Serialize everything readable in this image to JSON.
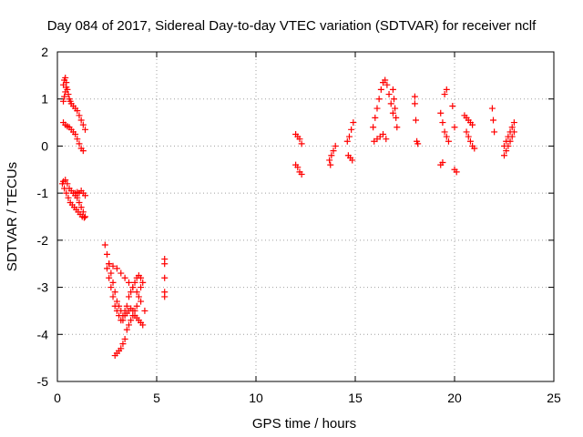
{
  "chart_data": {
    "type": "scatter",
    "title": "Day 084 of 2017, Sidereal Day-to-day VTEC variation (SDTVAR) for receiver nclf",
    "xlabel": "GPS time / hours",
    "ylabel": "SDTVAR / TECUs",
    "xlim": [
      0,
      25
    ],
    "ylim": [
      -5,
      2
    ],
    "x_ticks": [
      "0",
      "5",
      "10",
      "15",
      "20",
      "25"
    ],
    "y_ticks": [
      "2",
      "1",
      "0",
      "-1",
      "-2",
      "-3",
      "-4",
      "-5"
    ],
    "grid": true,
    "marker": "+",
    "color": "#ff0000",
    "points": [
      [
        0.3,
        1.3
      ],
      [
        0.35,
        1.4
      ],
      [
        0.4,
        1.45
      ],
      [
        0.45,
        1.35
      ],
      [
        0.5,
        1.2
      ],
      [
        0.55,
        1.1
      ],
      [
        0.6,
        1.0
      ],
      [
        0.65,
        0.95
      ],
      [
        0.7,
        0.9
      ],
      [
        0.8,
        0.85
      ],
      [
        0.9,
        0.8
      ],
      [
        1.0,
        0.75
      ],
      [
        1.1,
        0.65
      ],
      [
        1.2,
        0.55
      ],
      [
        1.3,
        0.45
      ],
      [
        1.4,
        0.35
      ],
      [
        0.3,
        0.95
      ],
      [
        0.35,
        1.05
      ],
      [
        0.4,
        1.15
      ],
      [
        0.45,
        1.25
      ],
      [
        0.3,
        0.5
      ],
      [
        0.4,
        0.45
      ],
      [
        0.5,
        0.42
      ],
      [
        0.6,
        0.4
      ],
      [
        0.7,
        0.35
      ],
      [
        0.8,
        0.3
      ],
      [
        0.9,
        0.25
      ],
      [
        1.0,
        0.15
      ],
      [
        1.1,
        0.05
      ],
      [
        1.2,
        -0.05
      ],
      [
        1.3,
        -0.1
      ],
      [
        0.25,
        -0.8
      ],
      [
        0.3,
        -0.75
      ],
      [
        0.4,
        -0.72
      ],
      [
        0.5,
        -0.8
      ],
      [
        0.6,
        -0.9
      ],
      [
        0.7,
        -0.95
      ],
      [
        0.8,
        -1.0
      ],
      [
        0.9,
        -1.05
      ],
      [
        1.0,
        -1.1
      ],
      [
        1.1,
        -1.2
      ],
      [
        1.2,
        -1.3
      ],
      [
        1.3,
        -1.4
      ],
      [
        1.4,
        -1.5
      ],
      [
        0.35,
        -0.9
      ],
      [
        0.45,
        -1.0
      ],
      [
        0.55,
        -1.1
      ],
      [
        0.65,
        -1.2
      ],
      [
        0.75,
        -1.25
      ],
      [
        0.85,
        -1.3
      ],
      [
        0.95,
        -1.35
      ],
      [
        1.05,
        -1.4
      ],
      [
        1.15,
        -1.45
      ],
      [
        1.25,
        -1.5
      ],
      [
        1.35,
        -1.52
      ],
      [
        0.9,
        -1.0
      ],
      [
        1.0,
        -0.98
      ],
      [
        1.1,
        -1.0
      ],
      [
        1.2,
        -0.95
      ],
      [
        1.3,
        -1.0
      ],
      [
        1.4,
        -1.05
      ],
      [
        2.4,
        -2.1
      ],
      [
        2.5,
        -2.3
      ],
      [
        2.6,
        -2.5
      ],
      [
        2.7,
        -2.7
      ],
      [
        2.8,
        -2.9
      ],
      [
        2.9,
        -3.1
      ],
      [
        3.0,
        -3.3
      ],
      [
        3.1,
        -3.4
      ],
      [
        3.2,
        -3.5
      ],
      [
        3.3,
        -3.6
      ],
      [
        3.4,
        -3.5
      ],
      [
        3.5,
        -3.4
      ],
      [
        3.6,
        -3.2
      ],
      [
        3.7,
        -3.1
      ],
      [
        3.8,
        -3.0
      ],
      [
        3.9,
        -2.9
      ],
      [
        4.0,
        -2.8
      ],
      [
        4.1,
        -2.75
      ],
      [
        4.2,
        -2.8
      ],
      [
        2.5,
        -2.6
      ],
      [
        2.6,
        -2.8
      ],
      [
        2.7,
        -3.0
      ],
      [
        2.8,
        -3.2
      ],
      [
        2.9,
        -3.4
      ],
      [
        3.0,
        -3.5
      ],
      [
        3.1,
        -3.6
      ],
      [
        3.2,
        -3.7
      ],
      [
        3.3,
        -3.7
      ],
      [
        3.4,
        -3.6
      ],
      [
        3.5,
        -3.55
      ],
      [
        3.6,
        -3.5
      ],
      [
        3.7,
        -3.45
      ],
      [
        3.8,
        -3.5
      ],
      [
        3.9,
        -3.6
      ],
      [
        4.0,
        -3.65
      ],
      [
        4.1,
        -3.7
      ],
      [
        4.2,
        -3.75
      ],
      [
        4.3,
        -3.8
      ],
      [
        2.9,
        -4.45
      ],
      [
        3.0,
        -4.4
      ],
      [
        3.1,
        -4.35
      ],
      [
        3.2,
        -4.3
      ],
      [
        3.3,
        -4.2
      ],
      [
        3.4,
        -4.1
      ],
      [
        3.5,
        -3.9
      ],
      [
        3.6,
        -3.8
      ],
      [
        3.7,
        -3.7
      ],
      [
        3.8,
        -3.6
      ],
      [
        3.9,
        -3.5
      ],
      [
        4.0,
        -3.4
      ],
      [
        4.1,
        -3.2
      ],
      [
        4.2,
        -3.0
      ],
      [
        4.3,
        -2.9
      ],
      [
        2.6,
        -2.5
      ],
      [
        2.8,
        -2.55
      ],
      [
        3.0,
        -2.6
      ],
      [
        3.2,
        -2.7
      ],
      [
        3.4,
        -2.8
      ],
      [
        3.6,
        -2.9
      ],
      [
        3.8,
        -3.0
      ],
      [
        4.0,
        -3.1
      ],
      [
        4.2,
        -3.3
      ],
      [
        4.4,
        -3.5
      ],
      [
        5.4,
        -2.4
      ],
      [
        5.4,
        -2.5
      ],
      [
        5.4,
        -2.8
      ],
      [
        5.4,
        -3.1
      ],
      [
        5.4,
        -3.2
      ],
      [
        12.0,
        0.25
      ],
      [
        12.1,
        0.2
      ],
      [
        12.2,
        0.15
      ],
      [
        12.3,
        0.05
      ],
      [
        12.0,
        -0.4
      ],
      [
        12.1,
        -0.45
      ],
      [
        12.2,
        -0.55
      ],
      [
        12.3,
        -0.6
      ],
      [
        13.7,
        -0.3
      ],
      [
        13.8,
        -0.2
      ],
      [
        13.9,
        -0.1
      ],
      [
        14.0,
        0.0
      ],
      [
        13.75,
        -0.4
      ],
      [
        14.6,
        0.1
      ],
      [
        14.7,
        0.2
      ],
      [
        14.8,
        0.35
      ],
      [
        14.9,
        0.5
      ],
      [
        14.65,
        -0.2
      ],
      [
        14.75,
        -0.25
      ],
      [
        14.85,
        -0.3
      ],
      [
        15.9,
        0.4
      ],
      [
        16.0,
        0.6
      ],
      [
        16.1,
        0.8
      ],
      [
        16.2,
        1.0
      ],
      [
        16.3,
        1.2
      ],
      [
        16.4,
        1.35
      ],
      [
        16.5,
        1.4
      ],
      [
        16.6,
        1.3
      ],
      [
        16.7,
        1.1
      ],
      [
        16.8,
        0.9
      ],
      [
        16.9,
        0.7
      ],
      [
        15.95,
        0.1
      ],
      [
        16.1,
        0.15
      ],
      [
        16.25,
        0.2
      ],
      [
        16.4,
        0.25
      ],
      [
        16.55,
        0.15
      ],
      [
        16.9,
        1.2
      ],
      [
        16.95,
        1.0
      ],
      [
        17.0,
        0.8
      ],
      [
        17.05,
        0.6
      ],
      [
        17.1,
        0.4
      ],
      [
        18.0,
        1.05
      ],
      [
        18.0,
        0.9
      ],
      [
        18.05,
        0.55
      ],
      [
        18.1,
        0.1
      ],
      [
        18.15,
        0.05
      ],
      [
        19.3,
        0.7
      ],
      [
        19.4,
        0.5
      ],
      [
        19.5,
        0.3
      ],
      [
        19.6,
        0.2
      ],
      [
        19.3,
        -0.4
      ],
      [
        19.4,
        -0.35
      ],
      [
        19.5,
        1.1
      ],
      [
        19.6,
        1.2
      ],
      [
        19.7,
        0.1
      ],
      [
        19.9,
        0.85
      ],
      [
        20.0,
        0.4
      ],
      [
        20.0,
        -0.5
      ],
      [
        20.1,
        -0.55
      ],
      [
        20.5,
        0.65
      ],
      [
        20.6,
        0.6
      ],
      [
        20.7,
        0.55
      ],
      [
        20.8,
        0.5
      ],
      [
        20.9,
        0.45
      ],
      [
        20.6,
        0.3
      ],
      [
        20.7,
        0.2
      ],
      [
        20.8,
        0.1
      ],
      [
        20.9,
        0.0
      ],
      [
        21.0,
        -0.05
      ],
      [
        21.9,
        0.8
      ],
      [
        21.95,
        0.55
      ],
      [
        22.0,
        0.3
      ],
      [
        22.5,
        0.0
      ],
      [
        22.6,
        0.1
      ],
      [
        22.7,
        0.2
      ],
      [
        22.8,
        0.3
      ],
      [
        22.9,
        0.4
      ],
      [
        23.0,
        0.5
      ],
      [
        22.5,
        -0.2
      ],
      [
        22.6,
        -0.1
      ],
      [
        22.7,
        0.0
      ],
      [
        22.8,
        0.1
      ],
      [
        22.9,
        0.2
      ],
      [
        23.0,
        0.3
      ]
    ]
  }
}
